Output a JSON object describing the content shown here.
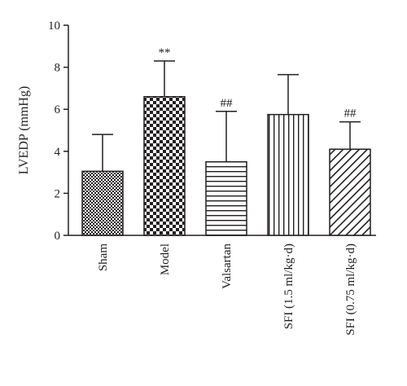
{
  "chart_data": {
    "type": "bar",
    "title": "",
    "xlabel": "",
    "ylabel": "LVEDP (mmHg)",
    "ylim": [
      0,
      10
    ],
    "yticks": [
      "0",
      "2",
      "4",
      "6",
      "8",
      "10"
    ],
    "grid": false,
    "categories": [
      "Sham",
      "Model",
      "Valsartan",
      "SFI (1.5 ml/kg·d)",
      "SFI (0.75 ml/kg·d)"
    ],
    "values": [
      3.05,
      6.6,
      3.5,
      5.75,
      4.1
    ],
    "errors": [
      1.75,
      1.7,
      2.4,
      1.9,
      1.3
    ],
    "annotations": [
      "",
      "**",
      "##",
      "",
      "##"
    ],
    "patterns": [
      "small-checker",
      "large-checker",
      "horizontal-lines",
      "vertical-lines",
      "diagonal-lines"
    ]
  }
}
